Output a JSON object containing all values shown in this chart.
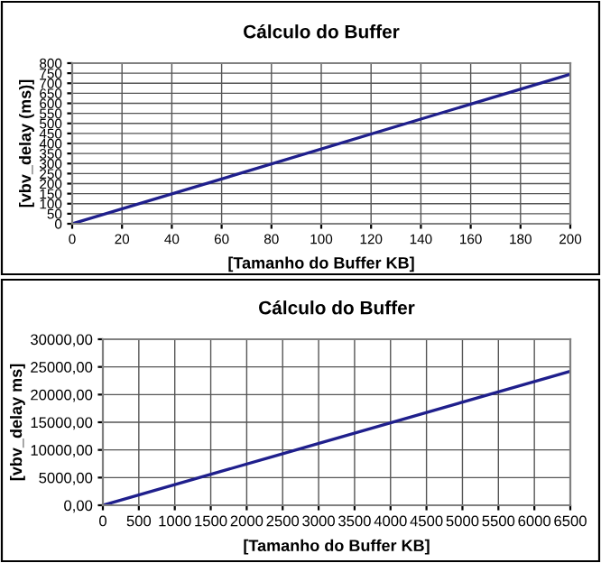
{
  "chart_data": [
    {
      "type": "line",
      "title": "Cálculo do Buffer",
      "xlabel": "[Tamanho do Buffer KB]",
      "ylabel": "[vbv_delay (ms)]",
      "x": [
        0,
        200
      ],
      "series": [
        {
          "color": "#1f1f8c",
          "values": [
            0,
            745
          ]
        }
      ],
      "xlim": [
        0,
        200
      ],
      "xticks": [
        0,
        20,
        40,
        60,
        80,
        100,
        120,
        140,
        160,
        180,
        200
      ],
      "ylim": [
        0,
        800
      ],
      "yticks": [
        0,
        50,
        100,
        150,
        200,
        250,
        300,
        350,
        400,
        450,
        500,
        550,
        600,
        650,
        700,
        750,
        800
      ],
      "grid": true,
      "marker": "none",
      "line_style": "solid"
    },
    {
      "type": "line",
      "title": "Cálculo do Buffer",
      "xlabel": "[Tamanho do Buffer KB]",
      "ylabel": "[vbv_delay ms]",
      "x": [
        0,
        6500
      ],
      "series": [
        {
          "color": "#1f1f8c",
          "values": [
            0,
            24200
          ]
        }
      ],
      "xlim": [
        0,
        6500
      ],
      "xticks": [
        0,
        500,
        1000,
        1500,
        2000,
        2500,
        3000,
        3500,
        4000,
        4500,
        5000,
        5500,
        6000,
        6500
      ],
      "ylim": [
        0,
        30000
      ],
      "yticks": [
        {
          "value": 0,
          "label": "0,00"
        },
        {
          "value": 5000,
          "label": "5000,00"
        },
        {
          "value": 10000,
          "label": "10000,00"
        },
        {
          "value": 15000,
          "label": "15000,00"
        },
        {
          "value": 20000,
          "label": "20000,00"
        },
        {
          "value": 25000,
          "label": "25000,00"
        },
        {
          "value": 30000,
          "label": "30000,00"
        }
      ],
      "grid": true,
      "marker": "none",
      "line_style": "solid"
    }
  ]
}
